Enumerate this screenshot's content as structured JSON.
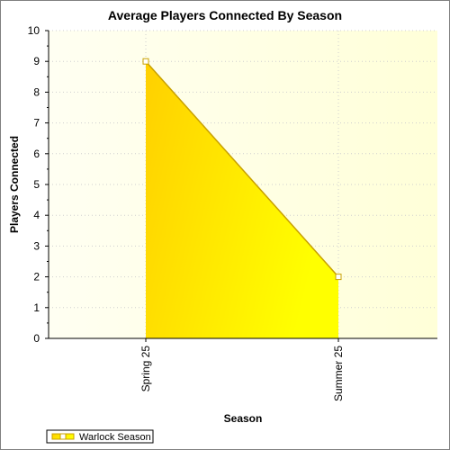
{
  "chart_data": {
    "type": "area",
    "title": "Average Players Connected By Season",
    "xlabel": "Season",
    "ylabel": "Players Connected",
    "categories": [
      "Spring 25",
      "Summer 25"
    ],
    "series": [
      {
        "name": "Warlock Season",
        "values": [
          9,
          2
        ]
      }
    ],
    "ylim": [
      0,
      10
    ],
    "yticks": [
      "0",
      "1",
      "2",
      "3",
      "4",
      "5",
      "6",
      "7",
      "8",
      "9",
      "10"
    ],
    "grid": true,
    "legend_position": "bottom-left",
    "colors": {
      "fill_light": "#ffff00",
      "fill_dark": "#ffd100",
      "line": "#c8a000",
      "plot_background": "#fffef0",
      "grid": "#cfcfcf"
    }
  }
}
